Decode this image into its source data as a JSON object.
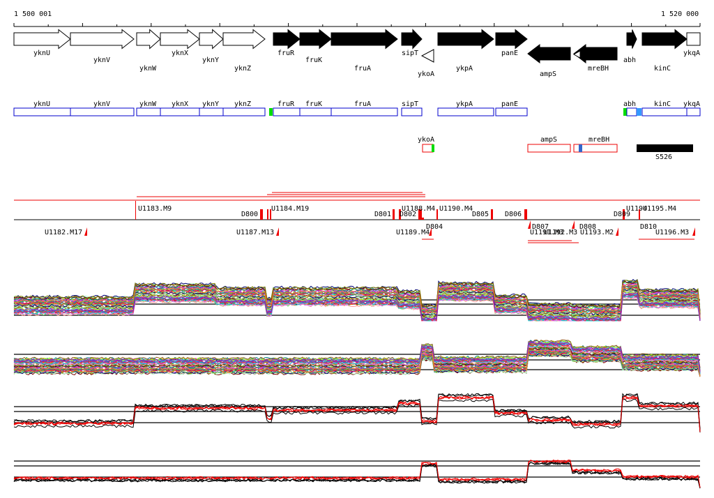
{
  "ruler": {
    "start_label": "1 500 001",
    "end_label": "1 520 000"
  },
  "colors": {
    "forward_gene": "#000000",
    "outline": "#000000",
    "blue": "#0000cc",
    "red": "#ee0000",
    "green": "#00dd00",
    "lightblue": "#3399ff"
  },
  "genes": [
    {
      "name": "yknU",
      "strand": "+",
      "filled": false
    },
    {
      "name": "yknV",
      "strand": "+",
      "filled": false
    },
    {
      "name": "yknW",
      "strand": "+",
      "filled": false
    },
    {
      "name": "yknX",
      "strand": "+",
      "filled": false
    },
    {
      "name": "yknY",
      "strand": "+",
      "filled": false
    },
    {
      "name": "yknZ",
      "strand": "+",
      "filled": false
    },
    {
      "name": "fruR",
      "strand": "+",
      "filled": true
    },
    {
      "name": "fruK",
      "strand": "+",
      "filled": true
    },
    {
      "name": "fruA",
      "strand": "+",
      "filled": true
    },
    {
      "name": "sipT",
      "strand": "+",
      "filled": true
    },
    {
      "name": "ykoA",
      "strand": "-",
      "filled": false
    },
    {
      "name": "ykpA",
      "strand": "+",
      "filled": true
    },
    {
      "name": "panE",
      "strand": "+",
      "filled": true
    },
    {
      "name": "ampS",
      "strand": "-",
      "filled": true
    },
    {
      "name": "mreBH",
      "strand": "-",
      "filled": true
    },
    {
      "name": "abh",
      "strand": "+",
      "filled": true
    },
    {
      "name": "kinC",
      "strand": "+",
      "filled": true
    },
    {
      "name": "ykqA",
      "strand": "+",
      "filled": false
    }
  ],
  "forward_track_labels": [
    "yknU",
    "yknV",
    "yknW",
    "yknX",
    "yknY",
    "yknZ",
    "fruR",
    "fruK",
    "fruA",
    "sipT",
    "ykpA",
    "panE",
    "abh",
    "kinC",
    "ykqA"
  ],
  "reverse_track_labels": [
    "ykoA",
    "ampS",
    "mreBH",
    "S526"
  ],
  "segment_labels_upper": [
    "U1183.M9",
    "D800",
    "U1188.M4",
    "U1190.M4",
    "D801",
    "D805",
    "D806",
    "D809",
    "U1194",
    "U1195.M4"
  ],
  "segment_labels_lower": [
    "U1182.M17",
    "U1187.M13",
    "U1189.M4",
    "D804",
    "D807",
    "U1191.M3",
    "D808",
    "U1193.M2",
    "D810",
    "U1196.M3"
  ],
  "overlap_labels": [
    "U1184.M19",
    "D802",
    "U1192.M3"
  ]
}
